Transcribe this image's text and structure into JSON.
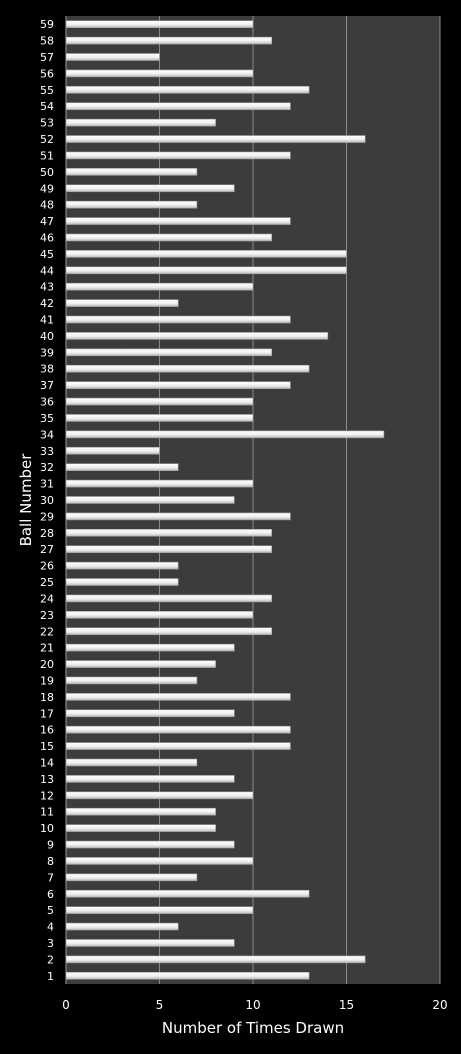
{
  "chart_data": {
    "type": "bar",
    "orientation": "horizontal",
    "xlabel": "Number of Times Drawn",
    "ylabel": "Ball Number",
    "xlim": [
      0,
      20
    ],
    "xticks": [
      0,
      5,
      10,
      15,
      20
    ],
    "grid": true,
    "colors": {
      "page_background": "#000000",
      "plot_background": "#3c3c3c",
      "gridline": "#8a8a8a",
      "bar_fill": "#f2f2f2",
      "text": "#ffffff"
    },
    "categories": [
      "1",
      "2",
      "3",
      "4",
      "5",
      "6",
      "7",
      "8",
      "9",
      "10",
      "11",
      "12",
      "13",
      "14",
      "15",
      "16",
      "17",
      "18",
      "19",
      "20",
      "21",
      "22",
      "23",
      "24",
      "25",
      "26",
      "27",
      "28",
      "29",
      "30",
      "31",
      "32",
      "33",
      "34",
      "35",
      "36",
      "37",
      "38",
      "39",
      "40",
      "41",
      "42",
      "43",
      "44",
      "45",
      "46",
      "47",
      "48",
      "49",
      "50",
      "51",
      "52",
      "53",
      "54",
      "55",
      "56",
      "57",
      "58",
      "59"
    ],
    "values": [
      13,
      16,
      9,
      6,
      10,
      13,
      7,
      10,
      9,
      8,
      8,
      10,
      9,
      7,
      12,
      12,
      9,
      12,
      7,
      8,
      9,
      11,
      10,
      11,
      6,
      6,
      11,
      11,
      12,
      9,
      10,
      6,
      5,
      17,
      10,
      10,
      12,
      13,
      11,
      14,
      12,
      6,
      10,
      15,
      15,
      11,
      12,
      7,
      9,
      7,
      12,
      16,
      8,
      12,
      13,
      10,
      5,
      11,
      10
    ]
  }
}
